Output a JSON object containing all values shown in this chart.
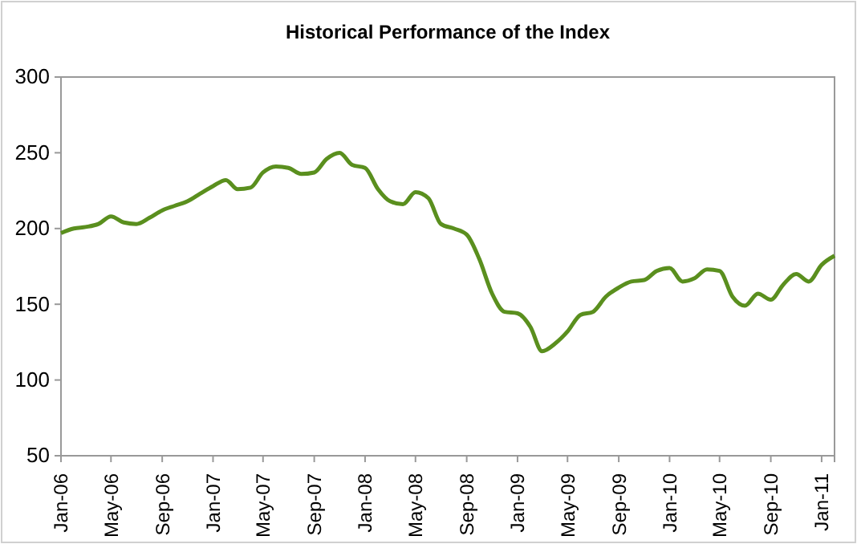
{
  "chart_data": {
    "type": "line",
    "title": "Historical Performance of the Index",
    "x": [
      "2006-01",
      "2006-02",
      "2006-03",
      "2006-04",
      "2006-05",
      "2006-06",
      "2006-07",
      "2006-08",
      "2006-09",
      "2006-10",
      "2006-11",
      "2006-12",
      "2007-01",
      "2007-02",
      "2007-03",
      "2007-04",
      "2007-05",
      "2007-06",
      "2007-07",
      "2007-08",
      "2007-09",
      "2007-10",
      "2007-11",
      "2007-12",
      "2008-01",
      "2008-02",
      "2008-03",
      "2008-04",
      "2008-05",
      "2008-06",
      "2008-07",
      "2008-08",
      "2008-09",
      "2008-10",
      "2008-11",
      "2008-12",
      "2009-01",
      "2009-02",
      "2009-03",
      "2009-04",
      "2009-05",
      "2009-06",
      "2009-07",
      "2009-08",
      "2009-09",
      "2009-10",
      "2009-11",
      "2009-12",
      "2010-01",
      "2010-02",
      "2010-03",
      "2010-04",
      "2010-05",
      "2010-06",
      "2010-07",
      "2010-08",
      "2010-09",
      "2010-10",
      "2010-11",
      "2010-12",
      "2011-01",
      "2011-02"
    ],
    "series": [
      {
        "color": "#5a8f1e",
        "values": [
          197,
          200,
          201,
          203,
          208,
          204,
          203,
          207,
          212,
          215,
          218,
          223,
          228,
          232,
          226,
          227,
          237,
          241,
          240,
          236,
          237,
          246,
          250,
          242,
          240,
          226,
          218,
          216,
          224,
          220,
          203,
          200,
          196,
          180,
          157,
          145,
          144,
          135,
          119,
          124,
          132,
          143,
          145,
          155,
          161,
          165,
          166,
          172,
          174,
          165,
          167,
          173,
          172,
          155,
          149,
          157,
          153,
          163,
          170,
          165,
          176,
          182
        ]
      }
    ],
    "xlim": [
      "2006-01",
      "2011-02"
    ],
    "xticks": [
      {
        "value": "2006-01",
        "label": "Jan-06"
      },
      {
        "value": "2006-05",
        "label": "May-06"
      },
      {
        "value": "2006-09",
        "label": "Sep-06"
      },
      {
        "value": "2007-01",
        "label": "Jan-07"
      },
      {
        "value": "2007-05",
        "label": "May-07"
      },
      {
        "value": "2007-09",
        "label": "Sep-07"
      },
      {
        "value": "2008-01",
        "label": "Jan-08"
      },
      {
        "value": "2008-05",
        "label": "May-08"
      },
      {
        "value": "2008-09",
        "label": "Sep-08"
      },
      {
        "value": "2009-01",
        "label": "Jan-09"
      },
      {
        "value": "2009-05",
        "label": "May-09"
      },
      {
        "value": "2009-09",
        "label": "Sep-09"
      },
      {
        "value": "2010-01",
        "label": "Jan-10"
      },
      {
        "value": "2010-05",
        "label": "May-10"
      },
      {
        "value": "2010-09",
        "label": "Sep-10"
      },
      {
        "value": "2011-01",
        "label": "Jan-11"
      }
    ],
    "ylim": [
      50,
      300
    ],
    "yticks": [
      50,
      100,
      150,
      200,
      250,
      300
    ],
    "grid": false,
    "marker": "none",
    "line_style": "solid"
  }
}
